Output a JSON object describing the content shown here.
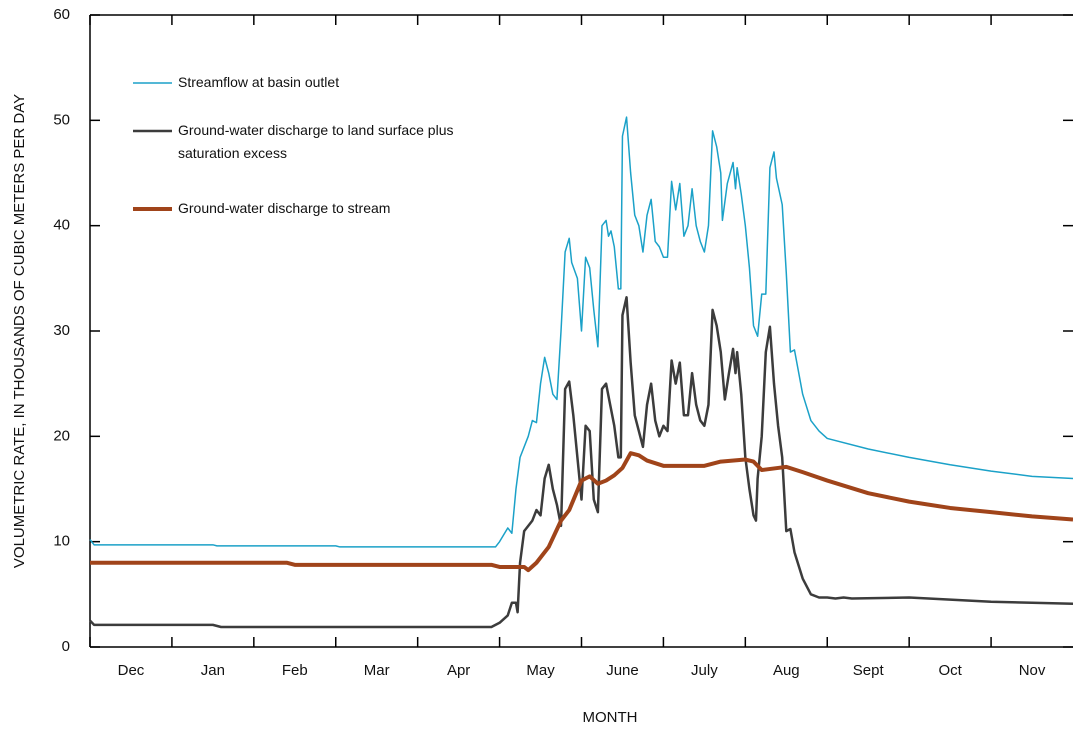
{
  "chart_data": {
    "type": "line",
    "ylabel": "VOLUMETRIC RATE, IN THOUSANDS OF CUBIC METERS PER DAY",
    "xlabel": "MONTH",
    "categories": [
      "Dec",
      "Jan",
      "Feb",
      "Mar",
      "Apr",
      "May",
      "June",
      "July",
      "Aug",
      "Sept",
      "Oct",
      "Nov"
    ],
    "xlim": [
      0,
      12
    ],
    "ylim": [
      0,
      60
    ],
    "yticks": [
      0,
      10,
      20,
      30,
      40,
      50,
      60
    ],
    "series": [
      {
        "name": "Streamflow at basin outlet",
        "color": "#1ba1c8",
        "width": 1.5,
        "x": [
          0,
          0.05,
          1.5,
          1.55,
          3,
          3.05,
          4.95,
          5.0,
          5.1,
          5.15,
          5.2,
          5.25,
          5.35,
          5.4,
          5.45,
          5.5,
          5.55,
          5.6,
          5.65,
          5.7,
          5.75,
          5.8,
          5.85,
          5.88,
          5.95,
          6.0,
          6.05,
          6.1,
          6.15,
          6.2,
          6.25,
          6.3,
          6.33,
          6.36,
          6.4,
          6.45,
          6.48,
          6.5,
          6.55,
          6.6,
          6.65,
          6.7,
          6.75,
          6.8,
          6.85,
          6.9,
          6.95,
          7.0,
          7.05,
          7.1,
          7.15,
          7.2,
          7.25,
          7.3,
          7.35,
          7.4,
          7.45,
          7.5,
          7.55,
          7.6,
          7.65,
          7.7,
          7.72,
          7.78,
          7.85,
          7.88,
          7.9,
          7.95,
          8.0,
          8.05,
          8.1,
          8.15,
          8.2,
          8.25,
          8.3,
          8.35,
          8.38,
          8.45,
          8.5,
          8.55,
          8.6,
          8.7,
          8.8,
          8.9,
          9.0,
          9.5,
          10,
          10.5,
          11,
          11.5,
          12
        ],
        "values": [
          10.2,
          9.7,
          9.7,
          9.6,
          9.6,
          9.5,
          9.5,
          10,
          11.3,
          10.8,
          15,
          18,
          20,
          21.5,
          21.3,
          25,
          27.5,
          26,
          24,
          23.5,
          30,
          37.5,
          38.8,
          36.5,
          35,
          30,
          37,
          36,
          32,
          28.5,
          40,
          40.5,
          39,
          39.5,
          38,
          34,
          34,
          48.5,
          50.3,
          45,
          41,
          40,
          37.5,
          41,
          42.5,
          38.5,
          38,
          37,
          37,
          44.2,
          41.5,
          44,
          39,
          40,
          43.5,
          40,
          38.5,
          37.5,
          40,
          49,
          47.5,
          45,
          40.5,
          44,
          46,
          43.5,
          45.5,
          43,
          40,
          36,
          30.5,
          29.5,
          33.5,
          33.5,
          45.5,
          47,
          44.5,
          42,
          35.5,
          28,
          28.2,
          24,
          21.5,
          20.5,
          19.8,
          18.8,
          18,
          17.3,
          16.7,
          16.2,
          16.0
        ]
      },
      {
        "name": "Ground-water discharge to land surface plus saturation excess",
        "color": "#3c3c3c",
        "width": 2.5,
        "x": [
          0,
          0.05,
          1.5,
          1.6,
          4.9,
          5.0,
          5.1,
          5.15,
          5.2,
          5.22,
          5.25,
          5.3,
          5.4,
          5.45,
          5.5,
          5.55,
          5.6,
          5.65,
          5.7,
          5.75,
          5.8,
          5.85,
          5.9,
          5.95,
          6.0,
          6.05,
          6.1,
          6.15,
          6.2,
          6.25,
          6.3,
          6.35,
          6.4,
          6.45,
          6.48,
          6.5,
          6.55,
          6.6,
          6.65,
          6.75,
          6.8,
          6.85,
          6.9,
          6.95,
          7.0,
          7.05,
          7.1,
          7.15,
          7.2,
          7.25,
          7.3,
          7.35,
          7.4,
          7.45,
          7.5,
          7.55,
          7.6,
          7.65,
          7.7,
          7.75,
          7.8,
          7.85,
          7.88,
          7.9,
          7.95,
          8.0,
          8.05,
          8.1,
          8.13,
          8.15,
          8.2,
          8.25,
          8.3,
          8.35,
          8.4,
          8.45,
          8.5,
          8.55,
          8.6,
          8.7,
          8.8,
          8.9,
          9.0,
          9.1,
          9.2,
          9.3,
          10,
          10.5,
          11,
          11.5,
          12
        ],
        "values": [
          2.5,
          2.1,
          2.1,
          1.9,
          1.9,
          2.3,
          3.0,
          4.2,
          4.2,
          3.3,
          8,
          11,
          12,
          13,
          12.5,
          16,
          17.3,
          15,
          13.5,
          11.5,
          24.5,
          25.2,
          22,
          18,
          14,
          21,
          20.5,
          14,
          12.8,
          24.5,
          25,
          23,
          21,
          18,
          18,
          31.5,
          33.2,
          27,
          22,
          19,
          23,
          25,
          21.5,
          20,
          21,
          20.5,
          27.2,
          25,
          27,
          22,
          22,
          26,
          23,
          21.5,
          21,
          23,
          32,
          30.5,
          28,
          23.5,
          26,
          28.3,
          26,
          28,
          24,
          18,
          15,
          12.5,
          12,
          16,
          20,
          28,
          30.4,
          25,
          21,
          18,
          11,
          11.2,
          9,
          6.5,
          5,
          4.7,
          4.7,
          4.6,
          4.7,
          4.6,
          4.7,
          4.5,
          4.3,
          4.2,
          4.1
        ]
      },
      {
        "name": "Ground-water discharge to stream",
        "color": "#a0441a",
        "width": 4,
        "x": [
          0,
          2.4,
          2.5,
          4.9,
          5.0,
          5.3,
          5.35,
          5.45,
          5.6,
          5.75,
          5.85,
          6.0,
          6.1,
          6.2,
          6.3,
          6.4,
          6.5,
          6.6,
          6.7,
          6.8,
          7.0,
          7.5,
          7.7,
          8.0,
          8.1,
          8.2,
          8.4,
          8.5,
          8.7,
          9.0,
          9.5,
          10,
          10.5,
          11,
          11.5,
          12
        ],
        "values": [
          8,
          8,
          7.8,
          7.8,
          7.6,
          7.6,
          7.3,
          8,
          9.5,
          12,
          13,
          15.8,
          16.2,
          15.5,
          15.8,
          16.3,
          17,
          18.4,
          18.2,
          17.7,
          17.2,
          17.2,
          17.6,
          17.8,
          17.6,
          16.8,
          17.0,
          17.1,
          16.6,
          15.8,
          14.6,
          13.8,
          13.2,
          12.8,
          12.4,
          12.1
        ]
      }
    ]
  }
}
